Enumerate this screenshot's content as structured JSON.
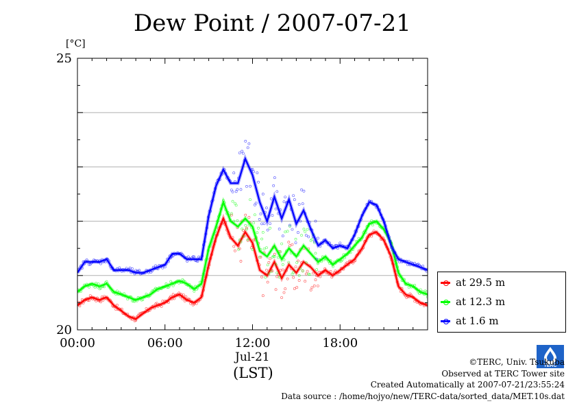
{
  "title": "Dew Point / 2007-07-21",
  "unit": "[°C]",
  "date_label": "Jul-21",
  "timezone_label": "(LST)",
  "credits": {
    "copyright": "©TERC, Univ. Tsukuba",
    "observed": "Observed at TERC Tower site",
    "created": "Created Automatically at 2007-07-21/23:55:24",
    "source": "Data source : /home/hojyo/new/TERC-data/sorted_data/MET.10s.dat"
  },
  "logo_text": "TERC",
  "chart_data": {
    "type": "line",
    "title": "Dew Point / 2007-07-21",
    "xlabel": "(LST)",
    "ylabel": "[°C]",
    "xlim": [
      0,
      24
    ],
    "ylim": [
      20,
      25
    ],
    "x_ticks": [
      {
        "value": 0,
        "label": "00:00"
      },
      {
        "value": 6,
        "label": "06:00"
      },
      {
        "value": 12,
        "label": "12:00"
      },
      {
        "value": 18,
        "label": "18:00"
      }
    ],
    "y_ticks": [
      {
        "value": 20,
        "label": "20"
      },
      {
        "value": 25,
        "label": "25"
      }
    ],
    "grid": "horizontal",
    "legend_position": "right",
    "x": [
      0,
      0.5,
      1,
      1.5,
      2,
      2.5,
      3,
      3.5,
      4,
      4.5,
      5,
      5.5,
      6,
      6.5,
      7,
      7.5,
      8,
      8.5,
      9,
      9.5,
      10,
      10.5,
      11,
      11.5,
      12,
      12.5,
      13,
      13.5,
      14,
      14.5,
      15,
      15.5,
      16,
      16.5,
      17,
      17.5,
      18,
      18.5,
      19,
      19.5,
      20,
      20.5,
      21,
      21.5,
      22,
      22.5,
      23,
      23.5,
      24
    ],
    "series": [
      {
        "name": "at 29.5 m",
        "color": "#ff0000",
        "values": [
          20.45,
          20.55,
          20.6,
          20.55,
          20.6,
          20.45,
          20.35,
          20.25,
          20.2,
          20.3,
          20.4,
          20.45,
          20.5,
          20.6,
          20.65,
          20.55,
          20.5,
          20.6,
          21.2,
          21.7,
          22.05,
          21.7,
          21.55,
          21.8,
          21.6,
          21.1,
          21.0,
          21.25,
          20.95,
          21.2,
          21.05,
          21.25,
          21.15,
          21.0,
          21.1,
          21.0,
          21.1,
          21.2,
          21.3,
          21.5,
          21.75,
          21.8,
          21.65,
          21.35,
          20.8,
          20.65,
          20.6,
          20.5,
          20.45
        ]
      },
      {
        "name": "at 12.3 m",
        "color": "#00ff00",
        "values": [
          20.7,
          20.8,
          20.85,
          20.8,
          20.85,
          20.7,
          20.65,
          20.6,
          20.55,
          20.6,
          20.65,
          20.75,
          20.8,
          20.85,
          20.9,
          20.85,
          20.75,
          20.85,
          21.5,
          21.9,
          22.35,
          22.0,
          21.9,
          22.05,
          21.9,
          21.45,
          21.35,
          21.55,
          21.3,
          21.5,
          21.35,
          21.55,
          21.4,
          21.25,
          21.35,
          21.2,
          21.3,
          21.4,
          21.55,
          21.7,
          21.95,
          22.0,
          21.85,
          21.6,
          21.05,
          20.85,
          20.8,
          20.7,
          20.65
        ]
      },
      {
        "name": "at 1.6 m",
        "color": "#0000ff",
        "values": [
          21.05,
          21.25,
          21.25,
          21.25,
          21.3,
          21.1,
          21.1,
          21.1,
          21.05,
          21.05,
          21.1,
          21.15,
          21.2,
          21.4,
          21.4,
          21.3,
          21.3,
          21.3,
          22.1,
          22.65,
          22.95,
          22.7,
          22.7,
          23.15,
          22.85,
          22.35,
          22.0,
          22.45,
          22.05,
          22.4,
          21.95,
          22.2,
          21.85,
          21.55,
          21.65,
          21.5,
          21.55,
          21.5,
          21.75,
          22.1,
          22.35,
          22.3,
          22.0,
          21.55,
          21.3,
          21.25,
          21.2,
          21.15,
          21.1
        ]
      }
    ]
  }
}
